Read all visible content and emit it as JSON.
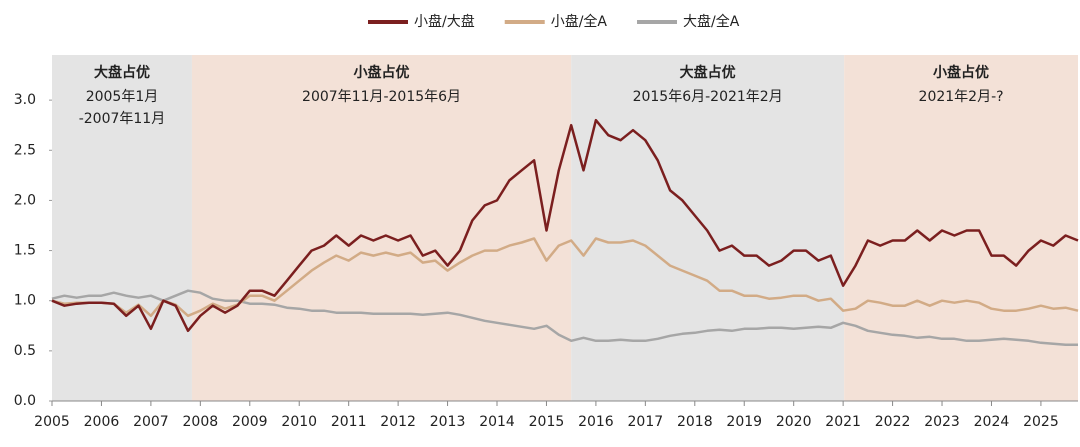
{
  "chart_data": {
    "type": "line",
    "x": [
      2005,
      2005.25,
      2005.5,
      2005.75,
      2006,
      2006.25,
      2006.5,
      2006.75,
      2007,
      2007.25,
      2007.5,
      2007.75,
      2008,
      2008.25,
      2008.5,
      2008.75,
      2009,
      2009.25,
      2009.5,
      2009.75,
      2010,
      2010.25,
      2010.5,
      2010.75,
      2011,
      2011.25,
      2011.5,
      2011.75,
      2012,
      2012.25,
      2012.5,
      2012.75,
      2013,
      2013.25,
      2013.5,
      2013.75,
      2014,
      2014.25,
      2014.5,
      2014.75,
      2015,
      2015.25,
      2015.5,
      2015.75,
      2016,
      2016.25,
      2016.5,
      2016.75,
      2017,
      2017.25,
      2017.5,
      2017.75,
      2018,
      2018.25,
      2018.5,
      2018.75,
      2019,
      2019.25,
      2019.5,
      2019.75,
      2020,
      2020.25,
      2020.5,
      2020.75,
      2021,
      2021.25,
      2021.5,
      2021.75,
      2022,
      2022.25,
      2022.5,
      2022.75,
      2023,
      2023.25,
      2023.5,
      2023.75,
      2024,
      2024.25,
      2024.5,
      2024.75,
      2025,
      2025.25,
      2025.5,
      2025.75
    ],
    "series": [
      {
        "name": "小盘/大盘",
        "color": "#7b1f1f",
        "values": [
          1.0,
          0.95,
          0.97,
          0.98,
          0.98,
          0.97,
          0.85,
          0.95,
          0.72,
          1.0,
          0.95,
          0.7,
          0.85,
          0.95,
          0.88,
          0.95,
          1.1,
          1.1,
          1.05,
          1.2,
          1.35,
          1.5,
          1.55,
          1.65,
          1.55,
          1.65,
          1.6,
          1.65,
          1.6,
          1.65,
          1.45,
          1.5,
          1.35,
          1.5,
          1.8,
          1.95,
          2.0,
          2.2,
          2.3,
          2.4,
          1.7,
          2.3,
          2.75,
          2.3,
          2.8,
          2.65,
          2.6,
          2.7,
          2.6,
          2.4,
          2.1,
          2.0,
          1.85,
          1.7,
          1.5,
          1.55,
          1.45,
          1.45,
          1.35,
          1.4,
          1.5,
          1.5,
          1.4,
          1.45,
          1.15,
          1.35,
          1.6,
          1.55,
          1.6,
          1.6,
          1.7,
          1.6,
          1.7,
          1.65,
          1.7,
          1.7,
          1.45,
          1.45,
          1.35,
          1.5,
          1.6,
          1.55,
          1.65,
          1.6
        ]
      },
      {
        "name": "小盘/全A",
        "color": "#d2ab86",
        "values": [
          1.0,
          0.97,
          0.98,
          0.98,
          0.98,
          0.97,
          0.88,
          0.96,
          0.85,
          1.0,
          0.96,
          0.85,
          0.9,
          0.97,
          0.92,
          0.96,
          1.05,
          1.05,
          1.0,
          1.1,
          1.2,
          1.3,
          1.38,
          1.45,
          1.4,
          1.48,
          1.45,
          1.48,
          1.45,
          1.48,
          1.38,
          1.4,
          1.3,
          1.38,
          1.45,
          1.5,
          1.5,
          1.55,
          1.58,
          1.62,
          1.4,
          1.55,
          1.6,
          1.45,
          1.62,
          1.58,
          1.58,
          1.6,
          1.55,
          1.45,
          1.35,
          1.3,
          1.25,
          1.2,
          1.1,
          1.1,
          1.05,
          1.05,
          1.02,
          1.03,
          1.05,
          1.05,
          1.0,
          1.02,
          0.9,
          0.92,
          1.0,
          0.98,
          0.95,
          0.95,
          1.0,
          0.95,
          1.0,
          0.98,
          1.0,
          0.98,
          0.92,
          0.9,
          0.9,
          0.92,
          0.95,
          0.92,
          0.93,
          0.9
        ]
      },
      {
        "name": "大盘/全A",
        "color": "#a6a6a6",
        "values": [
          1.02,
          1.05,
          1.03,
          1.05,
          1.05,
          1.08,
          1.05,
          1.03,
          1.05,
          1.0,
          1.05,
          1.1,
          1.08,
          1.02,
          1.0,
          1.0,
          0.97,
          0.97,
          0.96,
          0.93,
          0.92,
          0.9,
          0.9,
          0.88,
          0.88,
          0.88,
          0.87,
          0.87,
          0.87,
          0.87,
          0.86,
          0.87,
          0.88,
          0.86,
          0.83,
          0.8,
          0.78,
          0.76,
          0.74,
          0.72,
          0.75,
          0.66,
          0.6,
          0.63,
          0.6,
          0.6,
          0.61,
          0.6,
          0.6,
          0.62,
          0.65,
          0.67,
          0.68,
          0.7,
          0.71,
          0.7,
          0.72,
          0.72,
          0.73,
          0.73,
          0.72,
          0.73,
          0.74,
          0.73,
          0.78,
          0.75,
          0.7,
          0.68,
          0.66,
          0.65,
          0.63,
          0.64,
          0.62,
          0.62,
          0.6,
          0.6,
          0.61,
          0.62,
          0.61,
          0.6,
          0.58,
          0.57,
          0.56,
          0.56
        ]
      }
    ],
    "regions": [
      {
        "start": 2005,
        "end": 2007.83,
        "color": "#e4e4e4",
        "label": "大盘占优",
        "period": [
          "2005年1月",
          "-2007年11月"
        ]
      },
      {
        "start": 2007.83,
        "end": 2015.5,
        "color": "#f3e1d7",
        "label": "小盘占优",
        "period": [
          "2007年11月-2015年6月"
        ]
      },
      {
        "start": 2015.5,
        "end": 2021.02,
        "color": "#e4e4e4",
        "label": "大盘占优",
        "period": [
          "2015年6月-2021年2月"
        ]
      },
      {
        "start": 2021.02,
        "end": 2025.75,
        "color": "#f3e1d7",
        "label": "小盘占优",
        "period": [
          "2021年2月-?"
        ]
      }
    ],
    "xlim": [
      2005,
      2025.75
    ],
    "xticks": [
      2005,
      2006,
      2007,
      2008,
      2009,
      2010,
      2011,
      2012,
      2013,
      2014,
      2015,
      2016,
      2017,
      2018,
      2019,
      2020,
      2021,
      2022,
      2023,
      2024,
      2025
    ],
    "ylim": [
      0,
      3.45
    ],
    "yticks": [
      {
        "value": 0,
        "label": "0.0"
      },
      0.5,
      {
        "value": 1,
        "label": "1.0"
      },
      1.5,
      {
        "value": 2,
        "label": "2.0"
      },
      2.5,
      {
        "value": 3,
        "label": "3.0"
      }
    ]
  }
}
